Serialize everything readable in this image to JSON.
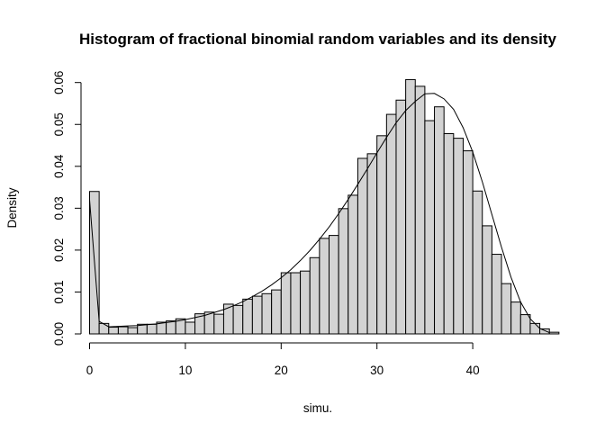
{
  "chart_data": {
    "type": "histogram",
    "title": "Histogram of fractional binomial random variables and its density",
    "xlabel": "simu.",
    "ylabel": "Density",
    "xlim": [
      0,
      50
    ],
    "ylim": [
      0,
      0.06
    ],
    "x_ticks": [
      "0",
      "10",
      "20",
      "30",
      "40"
    ],
    "y_ticks": [
      "0.00",
      "0.01",
      "0.02",
      "0.03",
      "0.04",
      "0.05",
      "0.06"
    ],
    "grid": false,
    "bin_width": 1,
    "bins": {
      "x_start": [
        0,
        1,
        2,
        3,
        4,
        5,
        6,
        7,
        8,
        9,
        10,
        11,
        12,
        13,
        14,
        15,
        16,
        17,
        18,
        19,
        20,
        21,
        22,
        23,
        24,
        25,
        26,
        27,
        28,
        29,
        30,
        31,
        32,
        33,
        34,
        35,
        36,
        37,
        38,
        39,
        40,
        41,
        42,
        43,
        44,
        45,
        46,
        47,
        48
      ],
      "density": [
        0.034,
        0.0025,
        0.0016,
        0.0017,
        0.0015,
        0.0023,
        0.0023,
        0.0028,
        0.0031,
        0.0036,
        0.0028,
        0.0048,
        0.0052,
        0.0047,
        0.0071,
        0.0068,
        0.0083,
        0.009,
        0.0096,
        0.0105,
        0.0146,
        0.0146,
        0.015,
        0.0182,
        0.0228,
        0.0235,
        0.0299,
        0.0331,
        0.0419,
        0.043,
        0.0473,
        0.0524,
        0.0558,
        0.0607,
        0.0591,
        0.0509,
        0.0542,
        0.0478,
        0.0467,
        0.0437,
        0.0341,
        0.0258,
        0.019,
        0.012,
        0.0076,
        0.0046,
        0.0025,
        0.0012,
        0.0004
      ]
    },
    "density_curve": {
      "x": [
        0,
        1,
        2,
        3,
        4,
        5,
        6,
        7,
        8,
        9,
        10,
        11,
        12,
        13,
        14,
        15,
        16,
        17,
        18,
        19,
        20,
        21,
        22,
        23,
        24,
        25,
        26,
        27,
        28,
        29,
        30,
        31,
        32,
        33,
        34,
        35,
        36,
        37,
        38,
        39,
        40,
        41,
        42,
        43,
        44,
        45,
        46,
        47,
        48
      ],
      "y": [
        0.032,
        0.003,
        0.0017,
        0.0018,
        0.0019,
        0.002,
        0.0022,
        0.0024,
        0.0027,
        0.003,
        0.0034,
        0.0039,
        0.0044,
        0.0051,
        0.0058,
        0.0067,
        0.0077,
        0.0089,
        0.0102,
        0.0117,
        0.0134,
        0.0153,
        0.0175,
        0.0199,
        0.0226,
        0.0255,
        0.0287,
        0.0321,
        0.0357,
        0.0394,
        0.0432,
        0.0469,
        0.0504,
        0.0533,
        0.0555,
        0.0573,
        0.0574,
        0.0561,
        0.0536,
        0.0492,
        0.0434,
        0.0363,
        0.0285,
        0.0207,
        0.0135,
        0.0076,
        0.0036,
        0.0013,
        0.0003
      ]
    }
  }
}
